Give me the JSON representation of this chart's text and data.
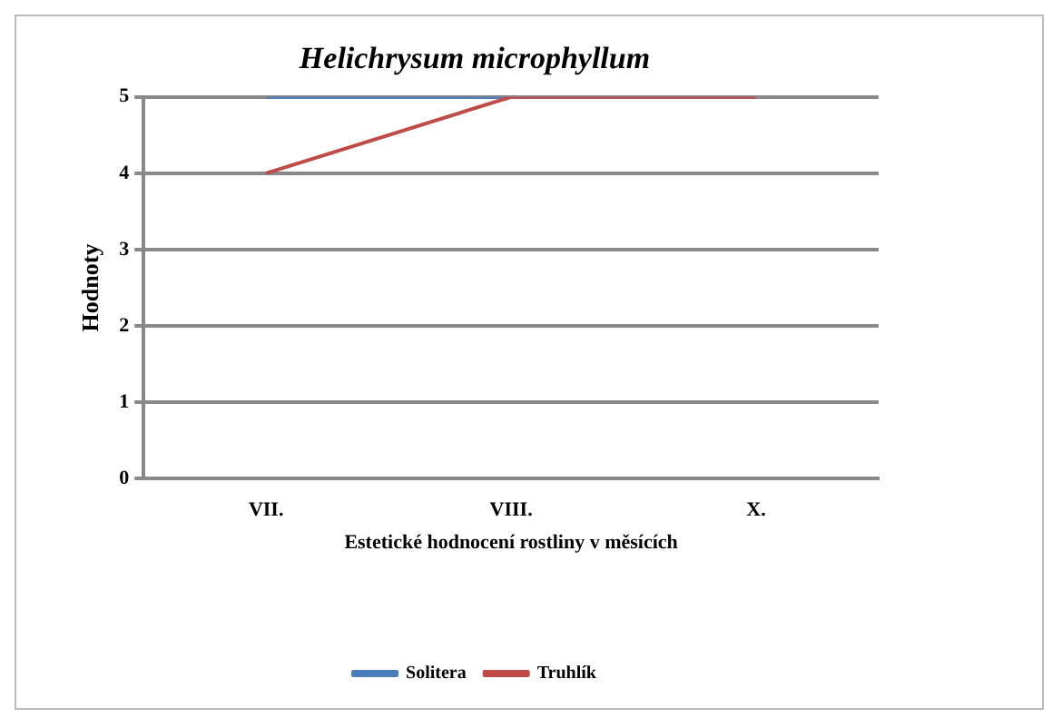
{
  "chart_data": {
    "type": "line",
    "title": "Helichrysum microphyllum",
    "xlabel": "Estetické hodnocení rostliny v měsících",
    "ylabel": "Hodnoty",
    "categories": [
      "VII.",
      "VIII.",
      "X."
    ],
    "series": [
      {
        "name": "Solitera",
        "color": "#4a7ebb",
        "values": [
          5,
          5,
          null
        ]
      },
      {
        "name": "Truhlík",
        "color": "#be4b48",
        "values": [
          4,
          5,
          5
        ]
      }
    ],
    "ylim": [
      0,
      5
    ],
    "yticks": [
      0,
      1,
      2,
      3,
      4,
      5
    ],
    "grid": "y",
    "legend": "bottom",
    "marker": "none",
    "line_style": "solid"
  }
}
